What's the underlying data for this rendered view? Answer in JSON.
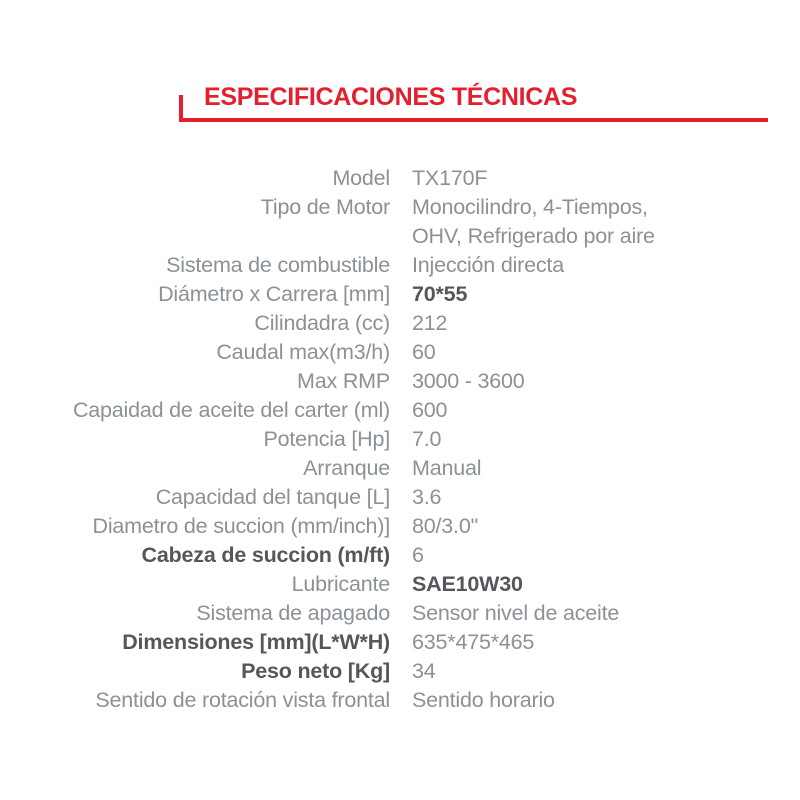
{
  "title": "ESPECIFICACIONES TÉCNICAS",
  "colors": {
    "accent_red": "#e5202e",
    "text_normal": "#8b9197",
    "text_emphasis": "#55575c"
  },
  "specs": {
    "rows": [
      {
        "label": "Model",
        "value": "TX170F",
        "label_bold": false,
        "value_bold": false
      },
      {
        "label": "Tipo de Motor",
        "value": "Monocilindro, 4-Tiempos,",
        "value_line2": "OHV, Refrigerado por aire",
        "label_bold": false,
        "value_bold": false
      },
      {
        "label": "Sistema de combustible",
        "value": "Injección directa",
        "label_bold": false,
        "value_bold": false
      },
      {
        "label": "Diámetro x Carrera [mm]",
        "value": "70*55",
        "label_bold": false,
        "value_bold": true
      },
      {
        "label": "Cilindadra (cc)",
        "value": "212",
        "label_bold": false,
        "value_bold": false
      },
      {
        "label": "Caudal max(m3/h)",
        "value": "60",
        "label_bold": false,
        "value_bold": false
      },
      {
        "label": "Max RMP",
        "value": "3000 - 3600",
        "label_bold": false,
        "value_bold": false
      },
      {
        "label": "Capaidad de aceite del carter (ml)",
        "value": "600",
        "label_bold": false,
        "value_bold": false
      },
      {
        "label": "Potencia [Hp]",
        "value": "7.0",
        "label_bold": false,
        "value_bold": false
      },
      {
        "label": "Arranque",
        "value": "Manual",
        "label_bold": false,
        "value_bold": false
      },
      {
        "label": "Capacidad del tanque [L]",
        "value": "3.6",
        "label_bold": false,
        "value_bold": false
      },
      {
        "label": "Diametro de succion (mm/inch)]",
        "value": "80/3.0\"",
        "label_bold": false,
        "value_bold": false
      },
      {
        "label": "Cabeza de succion (m/ft)",
        "value": "6",
        "label_bold": true,
        "value_bold": false
      },
      {
        "label": "Lubricante",
        "value": "SAE10W30",
        "label_bold": false,
        "value_bold": true
      },
      {
        "label": "Sistema de apagado",
        "value": "Sensor nivel de aceite",
        "label_bold": false,
        "value_bold": false
      },
      {
        "label": "Dimensiones [mm](L*W*H)",
        "value": "635*475*465",
        "label_bold": true,
        "value_bold": false
      },
      {
        "label": "Peso neto [Kg]",
        "value": "34",
        "label_bold": true,
        "value_bold": false
      },
      {
        "label": "Sentido de rotación vista frontal",
        "value": "Sentido horario",
        "label_bold": false,
        "value_bold": false
      }
    ]
  }
}
